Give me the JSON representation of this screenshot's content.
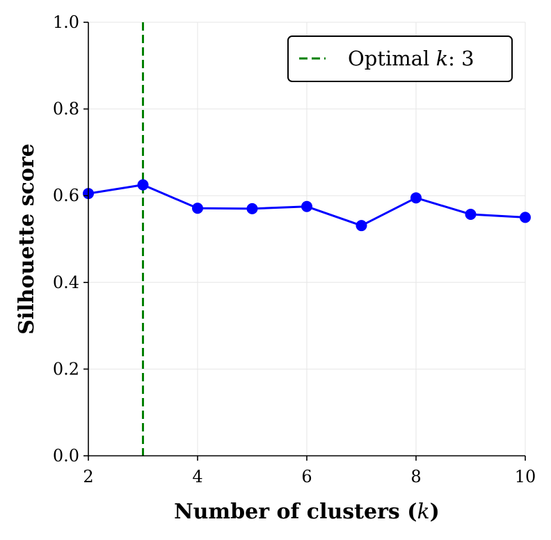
{
  "chart_data": {
    "type": "line",
    "title": "",
    "xlabel": "Number of clusters (",
    "xlabel_var": "k",
    "xlabel_close": ")",
    "ylabel": "Silhouette score",
    "x": [
      2,
      3,
      4,
      5,
      6,
      7,
      8,
      9,
      10
    ],
    "series": [
      {
        "name": "Silhouette score",
        "color": "#0000ff",
        "values": [
          0.605,
          0.625,
          0.571,
          0.57,
          0.575,
          0.531,
          0.595,
          0.557,
          0.55
        ]
      }
    ],
    "xlim": [
      2,
      10
    ],
    "ylim": [
      0.0,
      1.0
    ],
    "xticks": [
      "2",
      "4",
      "6",
      "8",
      "10"
    ],
    "xtick_values": [
      2,
      4,
      6,
      8,
      10
    ],
    "yticks": [
      "0.0",
      "0.2",
      "0.4",
      "0.6",
      "0.8",
      "1.0"
    ],
    "ytick_values": [
      0.0,
      0.2,
      0.4,
      0.6,
      0.8,
      1.0
    ],
    "grid": true,
    "optimal_line": {
      "x": 3,
      "color": "#008000",
      "style": "dashed"
    },
    "legend": {
      "position": "top-right",
      "prefix": "Optimal ",
      "var": "k",
      "suffix": ": 3"
    }
  }
}
